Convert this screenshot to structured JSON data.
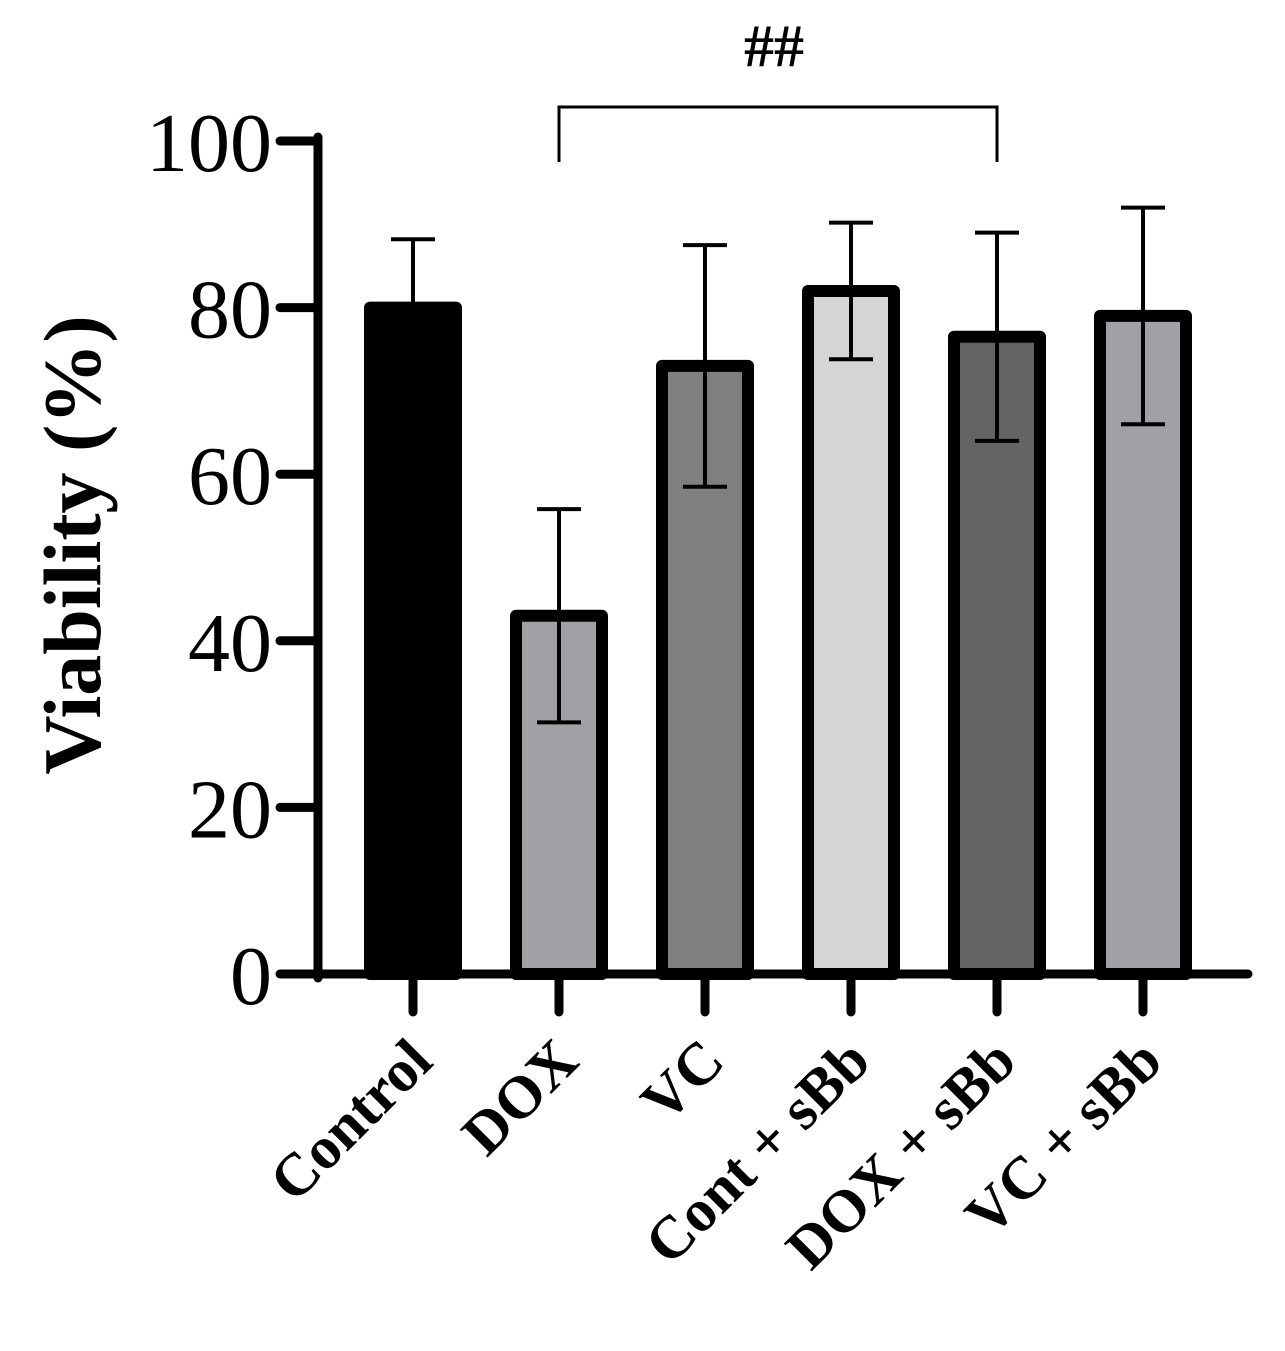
{
  "chart_data": {
    "type": "bar",
    "title": "",
    "xlabel": "",
    "ylabel": "Viability (%)",
    "ylim": [
      0,
      100
    ],
    "yticks": [
      0,
      20,
      40,
      60,
      80,
      100
    ],
    "grid": false,
    "categories": [
      "Control",
      "DOX",
      "VC",
      "Cont + sBb",
      "DOX + sBb",
      "VC + sBb"
    ],
    "values": [
      80,
      43,
      73,
      82,
      76.5,
      79
    ],
    "errors": [
      8.2,
      12.8,
      14.5,
      8.2,
      12.5,
      13.0
    ],
    "bar_colors": [
      "#000000",
      "#a1a0a5",
      "#7f7f7f",
      "#d5d5d5",
      "#646464",
      "#a1a0a5"
    ],
    "significance": [
      {
        "from": "DOX",
        "to": "DOX + sBb",
        "label": "##"
      }
    ]
  }
}
